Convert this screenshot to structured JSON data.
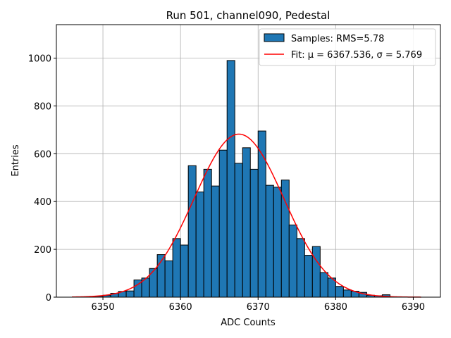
{
  "chart_data": {
    "type": "bar",
    "title": "Run 501, channel090, Pedestal",
    "xlabel": "ADC Counts",
    "ylabel": "Entries",
    "xlim": [
      6344,
      6393.5
    ],
    "ylim": [
      0,
      1140
    ],
    "xticks": [
      6350,
      6360,
      6370,
      6380,
      6390
    ],
    "yticks": [
      0,
      200,
      400,
      600,
      800,
      1000
    ],
    "grid": true,
    "legend_position": "top-right",
    "histogram": {
      "name": "Samples: RMS=5.78",
      "color": "#1f77b4",
      "edge_color": "#000000",
      "bin_start": 6349.0,
      "bin_width": 1.0,
      "counts": [
        4,
        8,
        16,
        24,
        26,
        72,
        80,
        120,
        178,
        152,
        245,
        218,
        550,
        440,
        535,
        465,
        615,
        990,
        560,
        625,
        535,
        695,
        468,
        460,
        490,
        302,
        245,
        175,
        212,
        103,
        80,
        45,
        30,
        25,
        20,
        8,
        6,
        10
      ]
    },
    "fit": {
      "name": "Fit: μ = 6367.536, σ = 5.769",
      "color": "#ff0000",
      "mu": 6367.536,
      "sigma": 5.769,
      "amplitude": 682,
      "x_range": [
        6346,
        6391
      ]
    }
  }
}
